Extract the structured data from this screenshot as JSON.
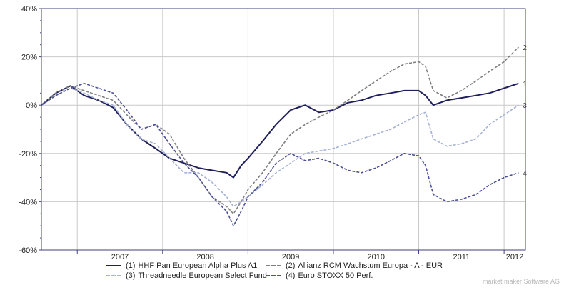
{
  "chart_data": {
    "type": "line",
    "xlabel": "",
    "ylabel": "",
    "x_tick_labels": [
      "2007",
      "2008",
      "2009",
      "2010",
      "2011",
      "2012"
    ],
    "y_tick_labels": [
      "40%",
      "20%",
      "0%",
      "-20%",
      "-40%",
      "-60%"
    ],
    "y_ticks": [
      40,
      20,
      0,
      -20,
      -40,
      -60
    ],
    "xlim": [
      2006.58,
      2012.25
    ],
    "ylim": [
      -60,
      40
    ],
    "grid": true,
    "legend_position": "bottom",
    "series": [
      {
        "name": "HHF Pan European Alpha Plus A1",
        "number": "(1)",
        "end_label": "1",
        "color": "#1f1f5c",
        "dash": "solid",
        "x": [
          2006.58,
          2006.75,
          2006.92,
          2007.08,
          2007.25,
          2007.42,
          2007.58,
          2007.75,
          2007.92,
          2008.08,
          2008.25,
          2008.42,
          2008.58,
          2008.75,
          2008.83,
          2008.92,
          2009.0,
          2009.17,
          2009.33,
          2009.5,
          2009.67,
          2009.83,
          2010.0,
          2010.17,
          2010.33,
          2010.5,
          2010.67,
          2010.83,
          2011.0,
          2011.08,
          2011.17,
          2011.33,
          2011.5,
          2011.67,
          2011.83,
          2012.0,
          2012.17
        ],
        "y": [
          0,
          5,
          8,
          4,
          2,
          -1,
          -8,
          -14,
          -18,
          -22,
          -24,
          -26,
          -27,
          -28,
          -30,
          -25,
          -22,
          -15,
          -8,
          -2,
          0,
          -3,
          -2,
          1,
          2,
          4,
          5,
          6,
          6,
          4,
          0,
          2,
          3,
          4,
          5,
          7,
          9
        ]
      },
      {
        "name": "Allianz RCM Wachstum Europa - A - EUR",
        "number": "(2)",
        "end_label": "2",
        "color": "#7f7f7f",
        "dash": "dashed",
        "x": [
          2006.58,
          2006.75,
          2006.92,
          2007.08,
          2007.25,
          2007.42,
          2007.58,
          2007.75,
          2007.92,
          2008.08,
          2008.25,
          2008.42,
          2008.58,
          2008.75,
          2008.83,
          2008.92,
          2009.0,
          2009.17,
          2009.33,
          2009.5,
          2009.67,
          2009.83,
          2010.0,
          2010.17,
          2010.33,
          2010.5,
          2010.67,
          2010.83,
          2011.0,
          2011.08,
          2011.17,
          2011.33,
          2011.5,
          2011.67,
          2011.83,
          2012.0,
          2012.17
        ],
        "y": [
          0,
          5,
          8,
          6,
          4,
          2,
          -4,
          -10,
          -8,
          -12,
          -22,
          -30,
          -38,
          -42,
          -45,
          -40,
          -35,
          -28,
          -20,
          -12,
          -8,
          -5,
          -2,
          2,
          6,
          10,
          14,
          17,
          18,
          16,
          6,
          3,
          6,
          10,
          14,
          18,
          24
        ]
      },
      {
        "name": "Threadneedle European Select Fund",
        "number": "(3)",
        "end_label": "3",
        "color": "#a5b2d6",
        "dash": "dashed",
        "x": [
          2006.58,
          2006.75,
          2006.92,
          2007.08,
          2007.25,
          2007.42,
          2007.58,
          2007.75,
          2007.92,
          2008.08,
          2008.25,
          2008.42,
          2008.58,
          2008.75,
          2008.83,
          2008.92,
          2009.0,
          2009.17,
          2009.33,
          2009.5,
          2009.67,
          2009.83,
          2010.0,
          2010.17,
          2010.33,
          2010.5,
          2010.67,
          2010.83,
          2011.0,
          2011.08,
          2011.17,
          2011.33,
          2011.5,
          2011.67,
          2011.83,
          2012.0,
          2012.17
        ],
        "y": [
          0,
          4,
          7,
          5,
          2,
          0,
          -8,
          -14,
          -16,
          -22,
          -28,
          -28,
          -32,
          -38,
          -42,
          -40,
          -38,
          -33,
          -28,
          -24,
          -20,
          -19,
          -18,
          -16,
          -14,
          -12,
          -10,
          -7,
          -4,
          -3,
          -14,
          -17,
          -16,
          -14,
          -8,
          -4,
          0
        ]
      },
      {
        "name": "Euro STOXX 50 Perf.",
        "number": "(4)",
        "end_label": "4",
        "color": "#4a4f98",
        "dash": "dashed",
        "x": [
          2006.58,
          2006.75,
          2006.92,
          2007.08,
          2007.25,
          2007.42,
          2007.58,
          2007.75,
          2007.92,
          2008.08,
          2008.25,
          2008.42,
          2008.58,
          2008.75,
          2008.83,
          2008.92,
          2009.0,
          2009.17,
          2009.33,
          2009.5,
          2009.67,
          2009.83,
          2010.0,
          2010.17,
          2010.33,
          2010.5,
          2010.67,
          2010.83,
          2011.0,
          2011.08,
          2011.17,
          2011.33,
          2011.5,
          2011.67,
          2011.83,
          2012.0,
          2012.17
        ],
        "y": [
          0,
          4,
          7,
          9,
          7,
          5,
          -2,
          -10,
          -8,
          -16,
          -24,
          -30,
          -38,
          -44,
          -50,
          -44,
          -38,
          -32,
          -24,
          -20,
          -23,
          -22,
          -24,
          -27,
          -28,
          -26,
          -23,
          -20,
          -21,
          -25,
          -37,
          -40,
          -39,
          -37,
          -33,
          -30,
          -28
        ]
      }
    ]
  },
  "watermark": "market maker Software AG"
}
